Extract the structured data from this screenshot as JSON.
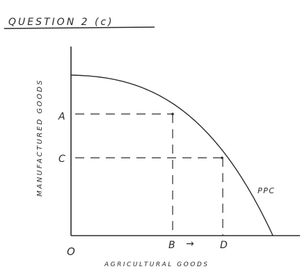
{
  "heading": "QUESTION 2 (c)",
  "y_axis_label": "MANUFACTURED GOODS",
  "x_axis_label": "AGRICULTURAL GOODS",
  "origin_label": "O",
  "point_labels": {
    "a": "A",
    "c": "C",
    "b": "B",
    "d": "D"
  },
  "curve_label": "PPC",
  "arrow_glyph": "→",
  "colors": {
    "ink": "#2b2b2b",
    "paper": "#ffffff"
  }
}
